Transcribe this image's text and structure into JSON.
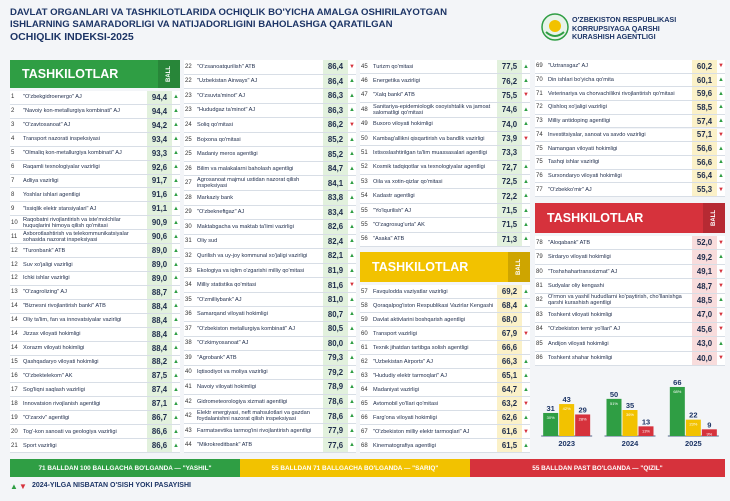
{
  "header": {
    "title_lines": [
      "DAVLAT ORGANLARI VA TASHKILOTLARIDA OCHIQLIK BO'YICHA AMALGA OSHIRILAYOTGAN",
      "ISHLARNING SAMARADORLIGI VA NATIJADORLIGINI BAHOLASHGA QARATILGAN",
      "OCHIQLIK INDEKSI-2025"
    ],
    "org_lines": [
      "O'ZBEKISTON RESPUBLIKASI",
      "KORRUPSIYAGA QARSHI",
      "KURASHISH AGENTLIGI"
    ]
  },
  "tables": [
    {
      "title": "TASHKILOTLAR",
      "ball": "BALL",
      "color": "#2f9e44",
      "tint": "#e2f1dd",
      "rows": [
        {
          "rank": 1,
          "name": "\"O'zbekgidroenergo\" AJ",
          "score": "94,4",
          "trend": "▲"
        },
        {
          "rank": 2,
          "name": "\"Navoiy kon-metallurgiya kombinati\" AJ",
          "score": "94,4",
          "trend": "▲"
        },
        {
          "rank": 3,
          "name": "\"O'zavtosanoat\" AJ",
          "score": "94,2",
          "trend": "▲"
        },
        {
          "rank": 4,
          "name": "Transport nazorati inspeksiyasi",
          "score": "93,4",
          "trend": "▲"
        },
        {
          "rank": 5,
          "name": "\"Olmaliq kon-metallurgiya kombinati\" AJ",
          "score": "93,3",
          "trend": "▲"
        },
        {
          "rank": 6,
          "name": "Raqamli texnologiyalar vazirligi",
          "score": "92,6",
          "trend": "▲"
        },
        {
          "rank": 7,
          "name": "Adliya vazirligi",
          "score": "91,7",
          "trend": "▲"
        },
        {
          "rank": 8,
          "name": "Yoshlar ishlari agentligi",
          "score": "91,6",
          "trend": "▲"
        },
        {
          "rank": 9,
          "name": "\"Issiqlik elektr stansiyalari\" AJ",
          "score": "91,1",
          "trend": "▲"
        },
        {
          "rank": 10,
          "name": "Raqobatni rivojlantirish va iste'molchilar huquqlarini himoya qilish qo'mitasi",
          "score": "90,9",
          "trend": "▲"
        },
        {
          "rank": 11,
          "name": "Axborotlashtirish va telekommunikatsiyalar sohasida nazorat inspeksiyasi",
          "score": "90,6",
          "trend": "▲"
        },
        {
          "rank": 12,
          "name": "\"Turonbank\" ATB",
          "score": "89,0",
          "trend": "▲"
        },
        {
          "rank": 12,
          "name": "Suv xo'jaligi vazirligi",
          "score": "89,0",
          "trend": "▲"
        },
        {
          "rank": 12,
          "name": "Ichki ishlar vazirligi",
          "score": "89,0",
          "trend": "▲"
        },
        {
          "rank": 13,
          "name": "\"O'zagrolizing\" AJ",
          "score": "88,7",
          "trend": "▲"
        },
        {
          "rank": 14,
          "name": "\"Biznesni rivojlantirish banki\" ATB",
          "score": "88,4",
          "trend": "▲"
        },
        {
          "rank": 14,
          "name": "Oliy ta'lim, fan va innovatsiyalar vazirligi",
          "score": "88,4",
          "trend": "▲"
        },
        {
          "rank": 14,
          "name": "Jizzax viloyati hokimligi",
          "score": "88,4",
          "trend": "▲"
        },
        {
          "rank": 14,
          "name": "Xorazm viloyati hokimligi",
          "score": "88,4",
          "trend": "▲"
        },
        {
          "rank": 15,
          "name": "Qashqadaryo viloyati hokimligi",
          "score": "88,2",
          "trend": "▲"
        },
        {
          "rank": 16,
          "name": "\"O'zbektelekom\" AK",
          "score": "87,5",
          "trend": "▲"
        },
        {
          "rank": 17,
          "name": "Sog'liqni saqlash vazirligi",
          "score": "87,4",
          "trend": "▲"
        },
        {
          "rank": 18,
          "name": "Innovatsion rivojlanish agentligi",
          "score": "87,1",
          "trend": "▲"
        },
        {
          "rank": 19,
          "name": "\"O'zarxiv\" agentligi",
          "score": "86,7",
          "trend": "▲"
        },
        {
          "rank": 20,
          "name": "Tog'-kon sanoati va geologiya vazirligi",
          "score": "86,6",
          "trend": "▲"
        },
        {
          "rank": 21,
          "name": "Sport vazirligi",
          "score": "86,6",
          "trend": "▲"
        },
        {
          "rank": 22,
          "name": "\"O'zsanoatqurilish\" ATB",
          "score": "86,4",
          "trend": "▼"
        },
        {
          "rank": 22,
          "name": "\"Uzbekistan Airways\" AJ",
          "score": "86,4",
          "trend": "▲"
        },
        {
          "rank": 23,
          "name": "\"O'zsuvta'minot\" AJ",
          "score": "86,3",
          "trend": "▲"
        },
        {
          "rank": 23,
          "name": "\"Hududgaz ta'minot\" AJ",
          "score": "86,3",
          "trend": "▲"
        },
        {
          "rank": 24,
          "name": "Soliq qo'mitasi",
          "score": "86,2",
          "trend": "▼"
        },
        {
          "rank": 25,
          "name": "Bojxona qo'mitasi",
          "score": "85,2",
          "trend": "▲"
        },
        {
          "rank": 25,
          "name": "Madaniy meros agentligi",
          "score": "85,2",
          "trend": "▲"
        },
        {
          "rank": 26,
          "name": "Bilim va malakalarni baholash agentligi",
          "score": "84,7",
          "trend": "▲"
        },
        {
          "rank": 27,
          "name": "Agrosanoat majmui ustidan nazorat qilish inspeksiyasi",
          "score": "84,1",
          "trend": "▲"
        },
        {
          "rank": 28,
          "name": "Markaziy bank",
          "score": "83,8",
          "trend": "▲"
        },
        {
          "rank": 29,
          "name": "\"O'zbekneftgaz\" AJ",
          "score": "83,4",
          "trend": "▲"
        },
        {
          "rank": 30,
          "name": "Maktabgacha va maktab ta'limi vazirligi",
          "score": "82,6",
          "trend": "▲"
        },
        {
          "rank": 31,
          "name": "Oliy sud",
          "score": "82,4",
          "trend": "▲"
        },
        {
          "rank": 32,
          "name": "Qurilish va uy-joy kommunal xo'jaligi vazirligi",
          "score": "82,1",
          "trend": "▲"
        },
        {
          "rank": 33,
          "name": "Ekologiya va iqlim o'zgarishi milliy qo'mitasi",
          "score": "81,9",
          "trend": "▲"
        },
        {
          "rank": 34,
          "name": "Milliy statistika qo'mitasi",
          "score": "81,6",
          "trend": "▼"
        },
        {
          "rank": 35,
          "name": "\"O'zmilliybank\" AJ",
          "score": "81,0",
          "trend": "▲"
        },
        {
          "rank": 36,
          "name": "Samarqand viloyati hokimligi",
          "score": "80,7",
          "trend": "▲"
        },
        {
          "rank": 37,
          "name": "\"O'zbekiston metallurgiya kombinati\" AJ",
          "score": "80,5",
          "trend": "▲"
        },
        {
          "rank": 38,
          "name": "\"O'zkimyosanoat\" AJ",
          "score": "80,0",
          "trend": "▲"
        },
        {
          "rank": 39,
          "name": "\"Agrobank\" ATB",
          "score": "79,3",
          "trend": "▲"
        },
        {
          "rank": 40,
          "name": "Iqtisodiyot va moliya vazirligi",
          "score": "79,2",
          "trend": "▲"
        },
        {
          "rank": 41,
          "name": "Navoiy viloyati hokimligi",
          "score": "78,9",
          "trend": "▲"
        },
        {
          "rank": 42,
          "name": "Gidrometeorologiya xizmati agentligi",
          "score": "78,6",
          "trend": "▲"
        },
        {
          "rank": 42,
          "name": "Elektr energiyasi, neft mahsulotlari va gazdan foydalanishni nazorat qilish inspeksiyasi",
          "score": "78,6",
          "trend": "▲"
        },
        {
          "rank": 43,
          "name": "Farmatsevtika tarmog'ini rivojlantirish agentligi",
          "score": "77,9",
          "trend": "▲"
        },
        {
          "rank": 44,
          "name": "\"Mikrokreditbank\" ATB",
          "score": "77,6",
          "trend": "▲"
        },
        {
          "rank": 45,
          "name": "Turizm qo'mitasi",
          "score": "77,5",
          "trend": "▲"
        },
        {
          "rank": 46,
          "name": "Energetika vazirligi",
          "score": "76,2",
          "trend": "▲"
        },
        {
          "rank": 47,
          "name": "\"Xalq banki\" ATB",
          "score": "75,5",
          "trend": "▼"
        },
        {
          "rank": 48,
          "name": "Sanitariya-epidemiologik osoyishtalik va jamoat salomatligi qo'mitasi",
          "score": "74,6",
          "trend": "▲"
        },
        {
          "rank": 49,
          "name": "Buxoro viloyati hokimligi",
          "score": "74,0",
          "trend": "▲"
        },
        {
          "rank": 50,
          "name": "Kambag'allikni qisqartirish va bandlik vazirligi",
          "score": "73,9",
          "trend": "▼"
        },
        {
          "rank": 51,
          "name": "Ixtisoslashtirilgan ta'lim muassasalari agentligi",
          "score": "73,3"
        },
        {
          "rank": 52,
          "name": "Kosmik tadqiqotlar va texnologiyalar agentligi",
          "score": "72,7",
          "trend": "▲"
        },
        {
          "rank": 53,
          "name": "Oila va xotin-qizlar qo'mitasi",
          "score": "72,5",
          "trend": "▲"
        },
        {
          "rank": 54,
          "name": "Kadastr agentligi",
          "score": "72,2",
          "trend": "▲"
        },
        {
          "rank": 55,
          "name": "\"Yo'lqurilish\" AJ",
          "score": "71,5",
          "trend": "▲"
        },
        {
          "rank": 55,
          "name": "\"O'zagrosug'urta\" AK",
          "score": "71,5",
          "trend": "▲"
        },
        {
          "rank": 56,
          "name": "\"Asaka\" ATB",
          "score": "71,3",
          "trend": "▲"
        }
      ]
    },
    {
      "title": "TASHKILOTLAR",
      "ball": "BALL",
      "color": "#f2c200",
      "tint": "#fbf1c8",
      "rows": [
        {
          "rank": 57,
          "name": "Favqulodda vaziyatlar vazirligi",
          "score": "69,2",
          "trend": "▲"
        },
        {
          "rank": 58,
          "name": "Qoraqalpog'iston Respublikasi Vazirlar Kengashi",
          "score": "68,4",
          "trend": "▲"
        },
        {
          "rank": 59,
          "name": "Davlat aktivlarini boshqarish agentligi",
          "score": "68,0"
        },
        {
          "rank": 60,
          "name": "Transport vazirligi",
          "score": "67,9",
          "trend": "▼"
        },
        {
          "rank": 61,
          "name": "Texnik jihatdan tartibga solish agentligi",
          "score": "66,6"
        },
        {
          "rank": 62,
          "name": "\"Uzbekistan Airports\" AJ",
          "score": "66,3",
          "trend": "▲"
        },
        {
          "rank": 63,
          "name": "\"Hududiy elektr tarmoqlari\" AJ",
          "score": "65,1",
          "trend": "▲"
        },
        {
          "rank": 64,
          "name": "Madaniyat vazirligi",
          "score": "64,7",
          "trend": "▲"
        },
        {
          "rank": 65,
          "name": "Avtomobil yo'llari qo'mitasi",
          "score": "63,2",
          "trend": "▼"
        },
        {
          "rank": 66,
          "name": "Farg'ona viloyati hokimligi",
          "score": "62,6",
          "trend": "▲"
        },
        {
          "rank": 67,
          "name": "\"O'zbekiston milliy elektr tarmoqlari\" AJ",
          "score": "61,6",
          "trend": "▼"
        },
        {
          "rank": 68,
          "name": "Kinematografiya agentligi",
          "score": "61,5",
          "trend": "▲"
        },
        {
          "rank": 69,
          "name": "\"Uztransgaz\" AJ",
          "score": "60,2",
          "trend": "▼"
        },
        {
          "rank": 70,
          "name": "Din ishlari bo'yicha qo'mita",
          "score": "60,1",
          "trend": "▲"
        },
        {
          "rank": 71,
          "name": "Veterinariya va chorvachilikni rivojlantirish qo'mitasi",
          "score": "59,6",
          "trend": "▲"
        },
        {
          "rank": 72,
          "name": "Qishloq xo'jaligi vazirligi",
          "score": "58,5",
          "trend": "▲"
        },
        {
          "rank": 73,
          "name": "Milliy antidoping agentligi",
          "score": "57,4",
          "trend": "▲"
        },
        {
          "rank": 74,
          "name": "Investitsiyalar, sanoat va savdo vazirligi",
          "score": "57,1",
          "trend": "▼"
        },
        {
          "rank": 75,
          "name": "Namangan viloyati hokimligi",
          "score": "56,6",
          "trend": "▲"
        },
        {
          "rank": 75,
          "name": "Tashqi ishlar vazirligi",
          "score": "56,6",
          "trend": "▲"
        },
        {
          "rank": 76,
          "name": "Surxondaryo viloyati hokimligi",
          "score": "56,4",
          "trend": "▲"
        },
        {
          "rank": 77,
          "name": "\"O'zbekko'mir\" AJ",
          "score": "55,3",
          "trend": "▼"
        }
      ]
    },
    {
      "title": "TASHKILOTLAR",
      "ball": "BALL",
      "color": "#d6323c",
      "tint": "#f8dcdc",
      "rows": [
        {
          "rank": 78,
          "name": "\"Aloqabank\" ATB",
          "score": "52,0",
          "trend": "▼"
        },
        {
          "rank": 79,
          "name": "Sirdaryo viloyati hokimligi",
          "score": "49,2",
          "trend": "▲"
        },
        {
          "rank": 80,
          "name": "\"Toshshahartransxizmat\" AJ",
          "score": "49,1",
          "trend": "▼"
        },
        {
          "rank": 81,
          "name": "Sudyalar oliy kengashi",
          "score": "48,7",
          "trend": "▼"
        },
        {
          "rank": 82,
          "name": "O'rmon va yashil hududlarni ko'paytirish, cho'llanishga qarshi kurashish agentligi",
          "score": "48,5",
          "trend": "▲"
        },
        {
          "rank": 83,
          "name": "Toshkent viloyati hokimligi",
          "score": "47,0",
          "trend": "▼"
        },
        {
          "rank": 84,
          "name": "\"O'zbekiston temir yo'llari\" AJ",
          "score": "45,6",
          "trend": "▼"
        },
        {
          "rank": 85,
          "name": "Andijon viloyati hokimligi",
          "score": "43,0",
          "trend": "▲"
        },
        {
          "rank": 86,
          "name": "Toshkent shahar hokimligi",
          "score": "40,0",
          "trend": "▼"
        }
      ]
    }
  ],
  "chart_data": {
    "type": "bar",
    "categories": [
      2023,
      2024,
      2025
    ],
    "ylim": [
      0,
      70
    ],
    "series": [
      {
        "color": "#2f9e44",
        "values": [
          31,
          50,
          66
        ],
        "share_labels": [
          "30%",
          "51%",
          "68%"
        ]
      },
      {
        "color": "#f2c200",
        "values": [
          43,
          35,
          22
        ],
        "share_labels": [
          "42%",
          "36%",
          "23%"
        ]
      },
      {
        "color": "#d6323c",
        "values": [
          29,
          13,
          9
        ],
        "share_labels": [
          "28%",
          "13%",
          "9%"
        ]
      }
    ]
  },
  "legend": [
    {
      "text": "71 BALLDAN 100 BALLGACHA BO'LGANDA — \"YASHIL\"",
      "color": "#2f9e44"
    },
    {
      "text": "55 BALLDAN 71 BALLGACHA BO'LGANDA — \"SARIQ\"",
      "color": "#f2c200"
    },
    {
      "text": "55 BALLDAN PAST BO'LGANDA — \"QIZIL\"",
      "color": "#d6323c"
    }
  ],
  "footer": {
    "up": "▲",
    "down": "▼",
    "text": "2024-YILGA NISBATAN O'SISH YOKI PASAYISHI"
  }
}
